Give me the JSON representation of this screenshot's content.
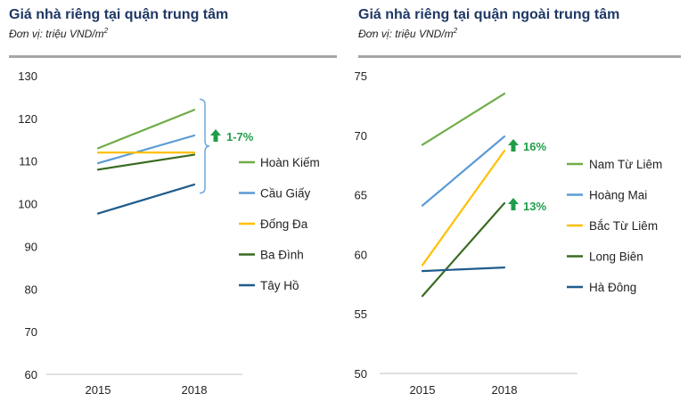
{
  "charts": [
    {
      "title": "Giá nhà riêng tại quận trung tâm",
      "subtitle_prefix": "Đơn vị: triệu VND/m",
      "subtitle_sup": "2",
      "annotation": "1-7%"
    },
    {
      "title": "Giá nhà riêng tại quận ngoài trung tâm",
      "subtitle_prefix": "Đơn vị: triệu VND/m",
      "subtitle_sup": "2",
      "annotations": [
        "16%",
        "13%"
      ]
    }
  ],
  "colors": {
    "title": "#1f3864",
    "arrow": "#1f9d4a",
    "annotation_text": "#1f9d4a",
    "brace": "#6fa8dc",
    "axis": "#c0c0c0"
  },
  "chart_data": [
    {
      "type": "line",
      "title": "Giá nhà riêng tại quận trung tâm",
      "x": [
        "2015",
        "2018"
      ],
      "ylim": [
        60,
        130
      ],
      "yticks": [
        60,
        70,
        80,
        90,
        100,
        110,
        120,
        130
      ],
      "legend": "right",
      "grid": false,
      "series": [
        {
          "name": "Hoàn Kiếm",
          "color": "#70ad47",
          "values": [
            113,
            122
          ]
        },
        {
          "name": "Cầu Giấy",
          "color": "#5b9bd5",
          "values": [
            109.5,
            116
          ]
        },
        {
          "name": "Đống Đa",
          "color": "#ffc000",
          "values": [
            112,
            112
          ]
        },
        {
          "name": "Ba Đình",
          "color": "#3a6b22",
          "values": [
            108,
            111.5
          ]
        },
        {
          "name": "Tây Hồ",
          "color": "#1f5c8b",
          "values": [
            97.7,
            104.5
          ]
        }
      ]
    },
    {
      "type": "line",
      "title": "Giá nhà riêng tại quận ngoài trung tâm",
      "x": [
        "2015",
        "2018"
      ],
      "ylim": [
        50,
        75
      ],
      "yticks": [
        50,
        55,
        60,
        65,
        70,
        75
      ],
      "legend": "right",
      "grid": false,
      "series": [
        {
          "name": "Nam Từ Liêm",
          "color": "#70ad47",
          "values": [
            69.2,
            73.5
          ]
        },
        {
          "name": "Hoàng Mai",
          "color": "#5b9bd5",
          "values": [
            64.1,
            69.9
          ]
        },
        {
          "name": "Bắc Từ Liêm",
          "color": "#ffc000",
          "values": [
            59.1,
            68.7
          ]
        },
        {
          "name": "Long Biên",
          "color": "#3a6b22",
          "values": [
            56.5,
            64.3
          ]
        },
        {
          "name": "Hà Đông",
          "color": "#1f5c8b",
          "values": [
            58.6,
            58.9
          ]
        }
      ]
    }
  ]
}
